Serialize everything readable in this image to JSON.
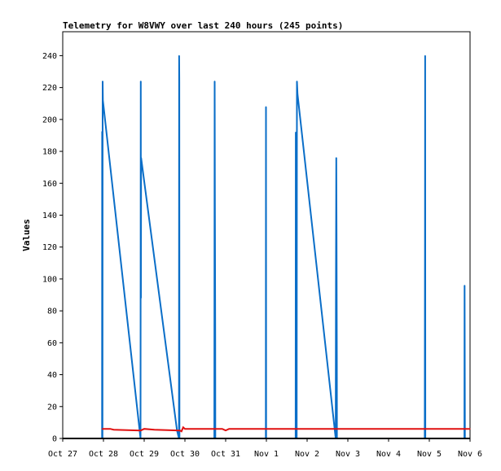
{
  "chart_data": {
    "type": "line",
    "title": "Telemetry for W8VWY over last 240 hours (245 points)",
    "ylabel": "Values",
    "xlabel": "",
    "ylim": [
      0,
      255
    ],
    "xlim": [
      "Oct 27",
      "Nov 6"
    ],
    "yticks": [
      0,
      20,
      40,
      60,
      80,
      100,
      120,
      140,
      160,
      180,
      200,
      220,
      240
    ],
    "xticks": [
      "Oct 27",
      "Oct 28",
      "Oct 29",
      "Oct 30",
      "Oct 31",
      "Nov 1",
      "Nov 2",
      "Nov 3",
      "Nov 4",
      "Nov 5",
      "Nov 6"
    ],
    "grid": false,
    "series": [
      {
        "color": "#0a6ec8",
        "points": [
          [
            "Oct 27 23:10",
            0
          ],
          [
            "Oct 27 23:15",
            192
          ],
          [
            "Oct 27 23:20",
            192
          ],
          [
            "Oct 27 23:22",
            0
          ],
          [
            "Oct 27 23:25",
            0
          ],
          [
            "Oct 27 23:30",
            224
          ],
          [
            "Oct 27 23:40",
            212
          ],
          [
            "Oct 28 21:50",
            0
          ],
          [
            "Oct 28 22:00",
            224
          ],
          [
            "Oct 28 22:05",
            88
          ],
          [
            "Oct 28 22:10",
            176
          ],
          [
            "Oct 29 19:20",
            5
          ],
          [
            "Oct 29 20:30",
            0
          ],
          [
            "Oct 29 20:36",
            240
          ],
          [
            "Oct 29 20:42",
            224
          ],
          [
            "Oct 29 20:48",
            0
          ],
          [
            "Oct 30 17:20",
            0
          ],
          [
            "Oct 30 17:30",
            224
          ],
          [
            "Oct 30 17:40",
            144
          ],
          [
            "Oct 30 17:50",
            64
          ],
          [
            "Oct 30 17:55",
            0
          ],
          [
            "Oct 31 23:40",
            0
          ],
          [
            "Oct 31 23:46",
            208
          ],
          [
            "Oct 31 23:52",
            0
          ],
          [
            "Nov 1 17:15",
            0
          ],
          [
            "Nov 1 17:20",
            192
          ],
          [
            "Nov 1 17:30",
            112
          ],
          [
            "Nov 1 17:40",
            80
          ],
          [
            "Nov 1 17:50",
            0
          ],
          [
            "Nov 1 18:00",
            224
          ],
          [
            "Nov 1 18:20",
            216
          ],
          [
            "Nov 2 16:50",
            0
          ],
          [
            "Nov 2 17:00",
            96
          ],
          [
            "Nov 2 17:10",
            176
          ],
          [
            "Nov 2 17:20",
            131
          ],
          [
            "Nov 2 17:30",
            45
          ],
          [
            "Nov 2 17:35",
            0
          ],
          [
            "Nov 4 21:20",
            0
          ],
          [
            "Nov 4 21:26",
            120
          ],
          [
            "Nov 4 21:32",
            240
          ],
          [
            "Nov 4 21:38",
            0
          ],
          [
            "Nov 5 20:40",
            0
          ],
          [
            "Nov 5 20:46",
            96
          ],
          [
            "Nov 5 20:52",
            48
          ],
          [
            "Nov 5 20:58",
            0
          ]
        ]
      },
      {
        "color": "#e01010",
        "points": [
          [
            "Oct 27 23:15",
            6
          ],
          [
            "Oct 28 04:00",
            6
          ],
          [
            "Oct 28 06:00",
            5.5
          ],
          [
            "Oct 28 22:00",
            5
          ],
          [
            "Oct 29 00:00",
            6
          ],
          [
            "Oct 29 06:00",
            5.5
          ],
          [
            "Oct 29 21:00",
            5
          ],
          [
            "Oct 29 22:00",
            4.5
          ],
          [
            "Oct 29 23:00",
            7
          ],
          [
            "Oct 30 00:00",
            6
          ],
          [
            "Oct 30 22:00",
            6
          ],
          [
            "Oct 31 00:00",
            5
          ],
          [
            "Oct 31 02:00",
            6
          ],
          [
            "Nov 5 23:59",
            6
          ]
        ]
      }
    ]
  }
}
